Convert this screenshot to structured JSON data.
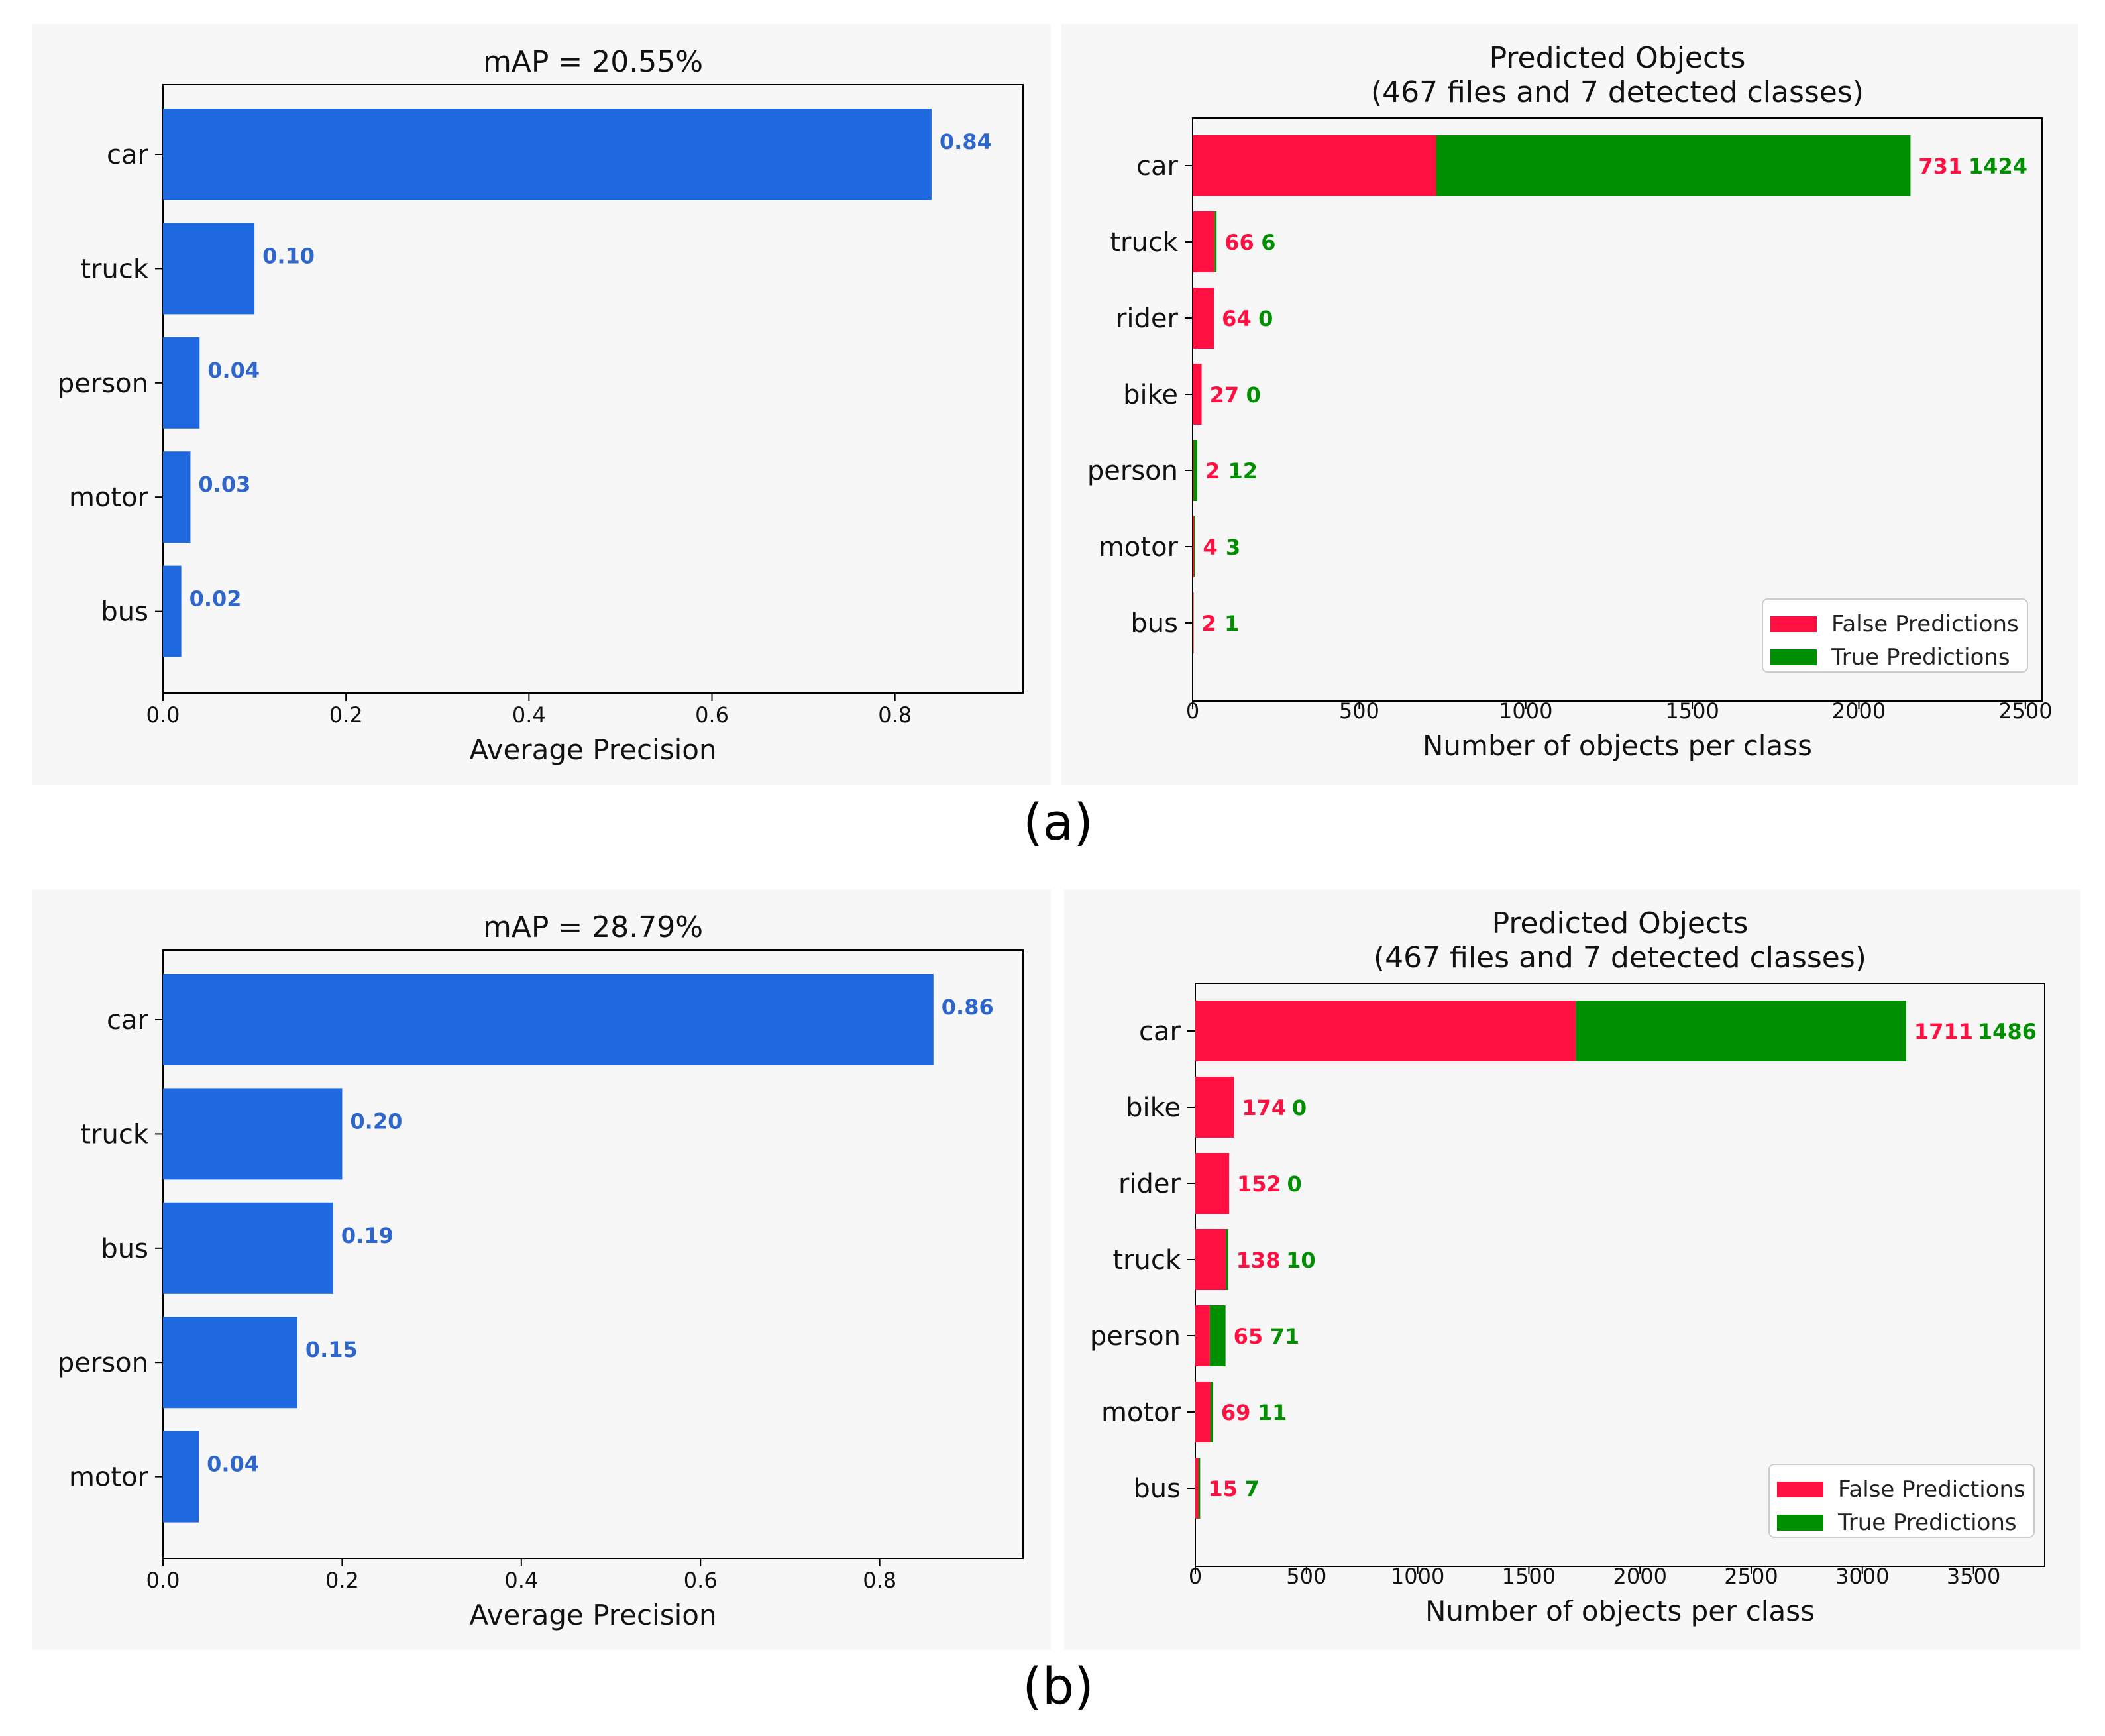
{
  "captions": {
    "a": "(a)",
    "b": "(b)"
  },
  "colors": {
    "ap_bar": "#1f69e0",
    "ap_label": "#2e66cc",
    "false": "#ff1040",
    "true": "#008f00",
    "panel_bg": "#f7f7f7"
  },
  "chart_data": [
    {
      "id": "a_map",
      "type": "bar",
      "orientation": "horizontal",
      "title": "mAP = 20.55%",
      "xlabel": "Average Precision",
      "ylabel": "",
      "categories": [
        "car",
        "truck",
        "person",
        "motor",
        "bus"
      ],
      "values": [
        0.84,
        0.1,
        0.04,
        0.03,
        0.02
      ],
      "value_labels": [
        "0.84",
        "0.10",
        "0.04",
        "0.03",
        "0.02"
      ],
      "xlim": [
        0,
        0.94
      ],
      "xticks": [
        0.0,
        0.2,
        0.4,
        0.6,
        0.8
      ],
      "xtick_labels": [
        "0.0",
        "0.2",
        "0.4",
        "0.6",
        "0.8"
      ],
      "grid": false
    },
    {
      "id": "a_pred",
      "type": "bar",
      "orientation": "horizontal",
      "stacked": true,
      "title": [
        "Predicted Objects",
        "(467 files and 7 detected classes)"
      ],
      "xlabel": "Number of objects per class",
      "ylabel": "",
      "categories": [
        "car",
        "truck",
        "rider",
        "bike",
        "person",
        "motor",
        "bus"
      ],
      "series": [
        {
          "name": "False Predictions",
          "values": [
            731,
            66,
            64,
            27,
            2,
            4,
            2
          ]
        },
        {
          "name": "True Predictions",
          "values": [
            1424,
            6,
            0,
            0,
            12,
            3,
            1
          ]
        }
      ],
      "xlim": [
        0,
        2550
      ],
      "xticks": [
        0,
        500,
        1000,
        1500,
        2000,
        2500
      ],
      "xtick_labels": [
        "0",
        "500",
        "1000",
        "1500",
        "2000",
        "2500"
      ],
      "legend": "bottom-right",
      "grid": false
    },
    {
      "id": "b_map",
      "type": "bar",
      "orientation": "horizontal",
      "title": "mAP = 28.79%",
      "xlabel": "Average Precision",
      "ylabel": "",
      "categories": [
        "car",
        "truck",
        "bus",
        "person",
        "motor"
      ],
      "values": [
        0.86,
        0.2,
        0.19,
        0.15,
        0.04
      ],
      "value_labels": [
        "0.86",
        "0.20",
        "0.19",
        "0.15",
        "0.04"
      ],
      "xlim": [
        0,
        0.96
      ],
      "xticks": [
        0.0,
        0.2,
        0.4,
        0.6,
        0.8
      ],
      "xtick_labels": [
        "0.0",
        "0.2",
        "0.4",
        "0.6",
        "0.8"
      ],
      "grid": false
    },
    {
      "id": "b_pred",
      "type": "bar",
      "orientation": "horizontal",
      "stacked": true,
      "title": [
        "Predicted Objects",
        "(467 files and 7 detected classes)"
      ],
      "xlabel": "Number of objects per class",
      "ylabel": "",
      "categories": [
        "car",
        "bike",
        "rider",
        "truck",
        "person",
        "motor",
        "bus"
      ],
      "series": [
        {
          "name": "False Predictions",
          "values": [
            1711,
            174,
            152,
            138,
            65,
            69,
            15
          ]
        },
        {
          "name": "True Predictions",
          "values": [
            1486,
            0,
            0,
            10,
            71,
            11,
            7
          ]
        }
      ],
      "xlim": [
        0,
        3820
      ],
      "xticks": [
        0,
        500,
        1000,
        1500,
        2000,
        2500,
        3000,
        3500
      ],
      "xtick_labels": [
        "0",
        "500",
        "1000",
        "1500",
        "2000",
        "2500",
        "3000",
        "3500"
      ],
      "legend": "bottom-right",
      "grid": false
    }
  ]
}
